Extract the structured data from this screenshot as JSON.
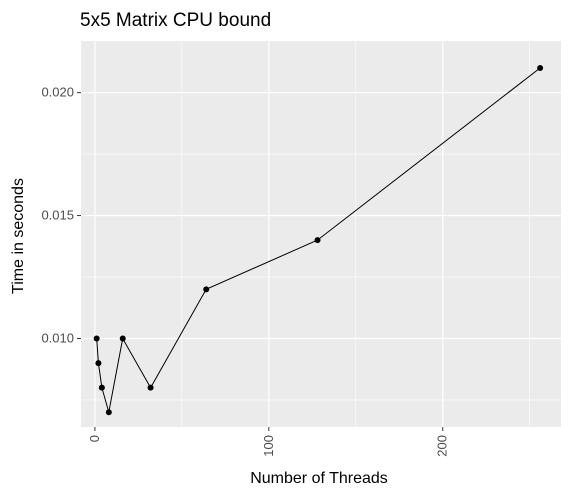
{
  "chart_data": {
    "type": "line",
    "title": "5x5 Matrix CPU bound",
    "xlabel": "Number of Threads",
    "ylabel": "Time in seconds",
    "xlim": [
      -8,
      268
    ],
    "ylim": [
      0.0064,
      0.0221
    ],
    "x_ticks": [
      0,
      100,
      200
    ],
    "x_tick_labels": [
      "0",
      "100",
      "200"
    ],
    "y_ticks": [
      0.01,
      0.015,
      0.02
    ],
    "y_tick_labels": [
      "0.010",
      "0.015",
      "0.020"
    ],
    "grid": true,
    "panel_background": "#EBEBEB",
    "grid_color": "#FFFFFF",
    "line_color": "#000000",
    "series": [
      {
        "x": [
          1,
          2,
          4,
          8,
          16,
          32,
          64,
          128,
          256
        ],
        "y": [
          0.01,
          0.009,
          0.008,
          0.007,
          0.01,
          0.008,
          0.012,
          0.014,
          0.021
        ]
      }
    ]
  }
}
